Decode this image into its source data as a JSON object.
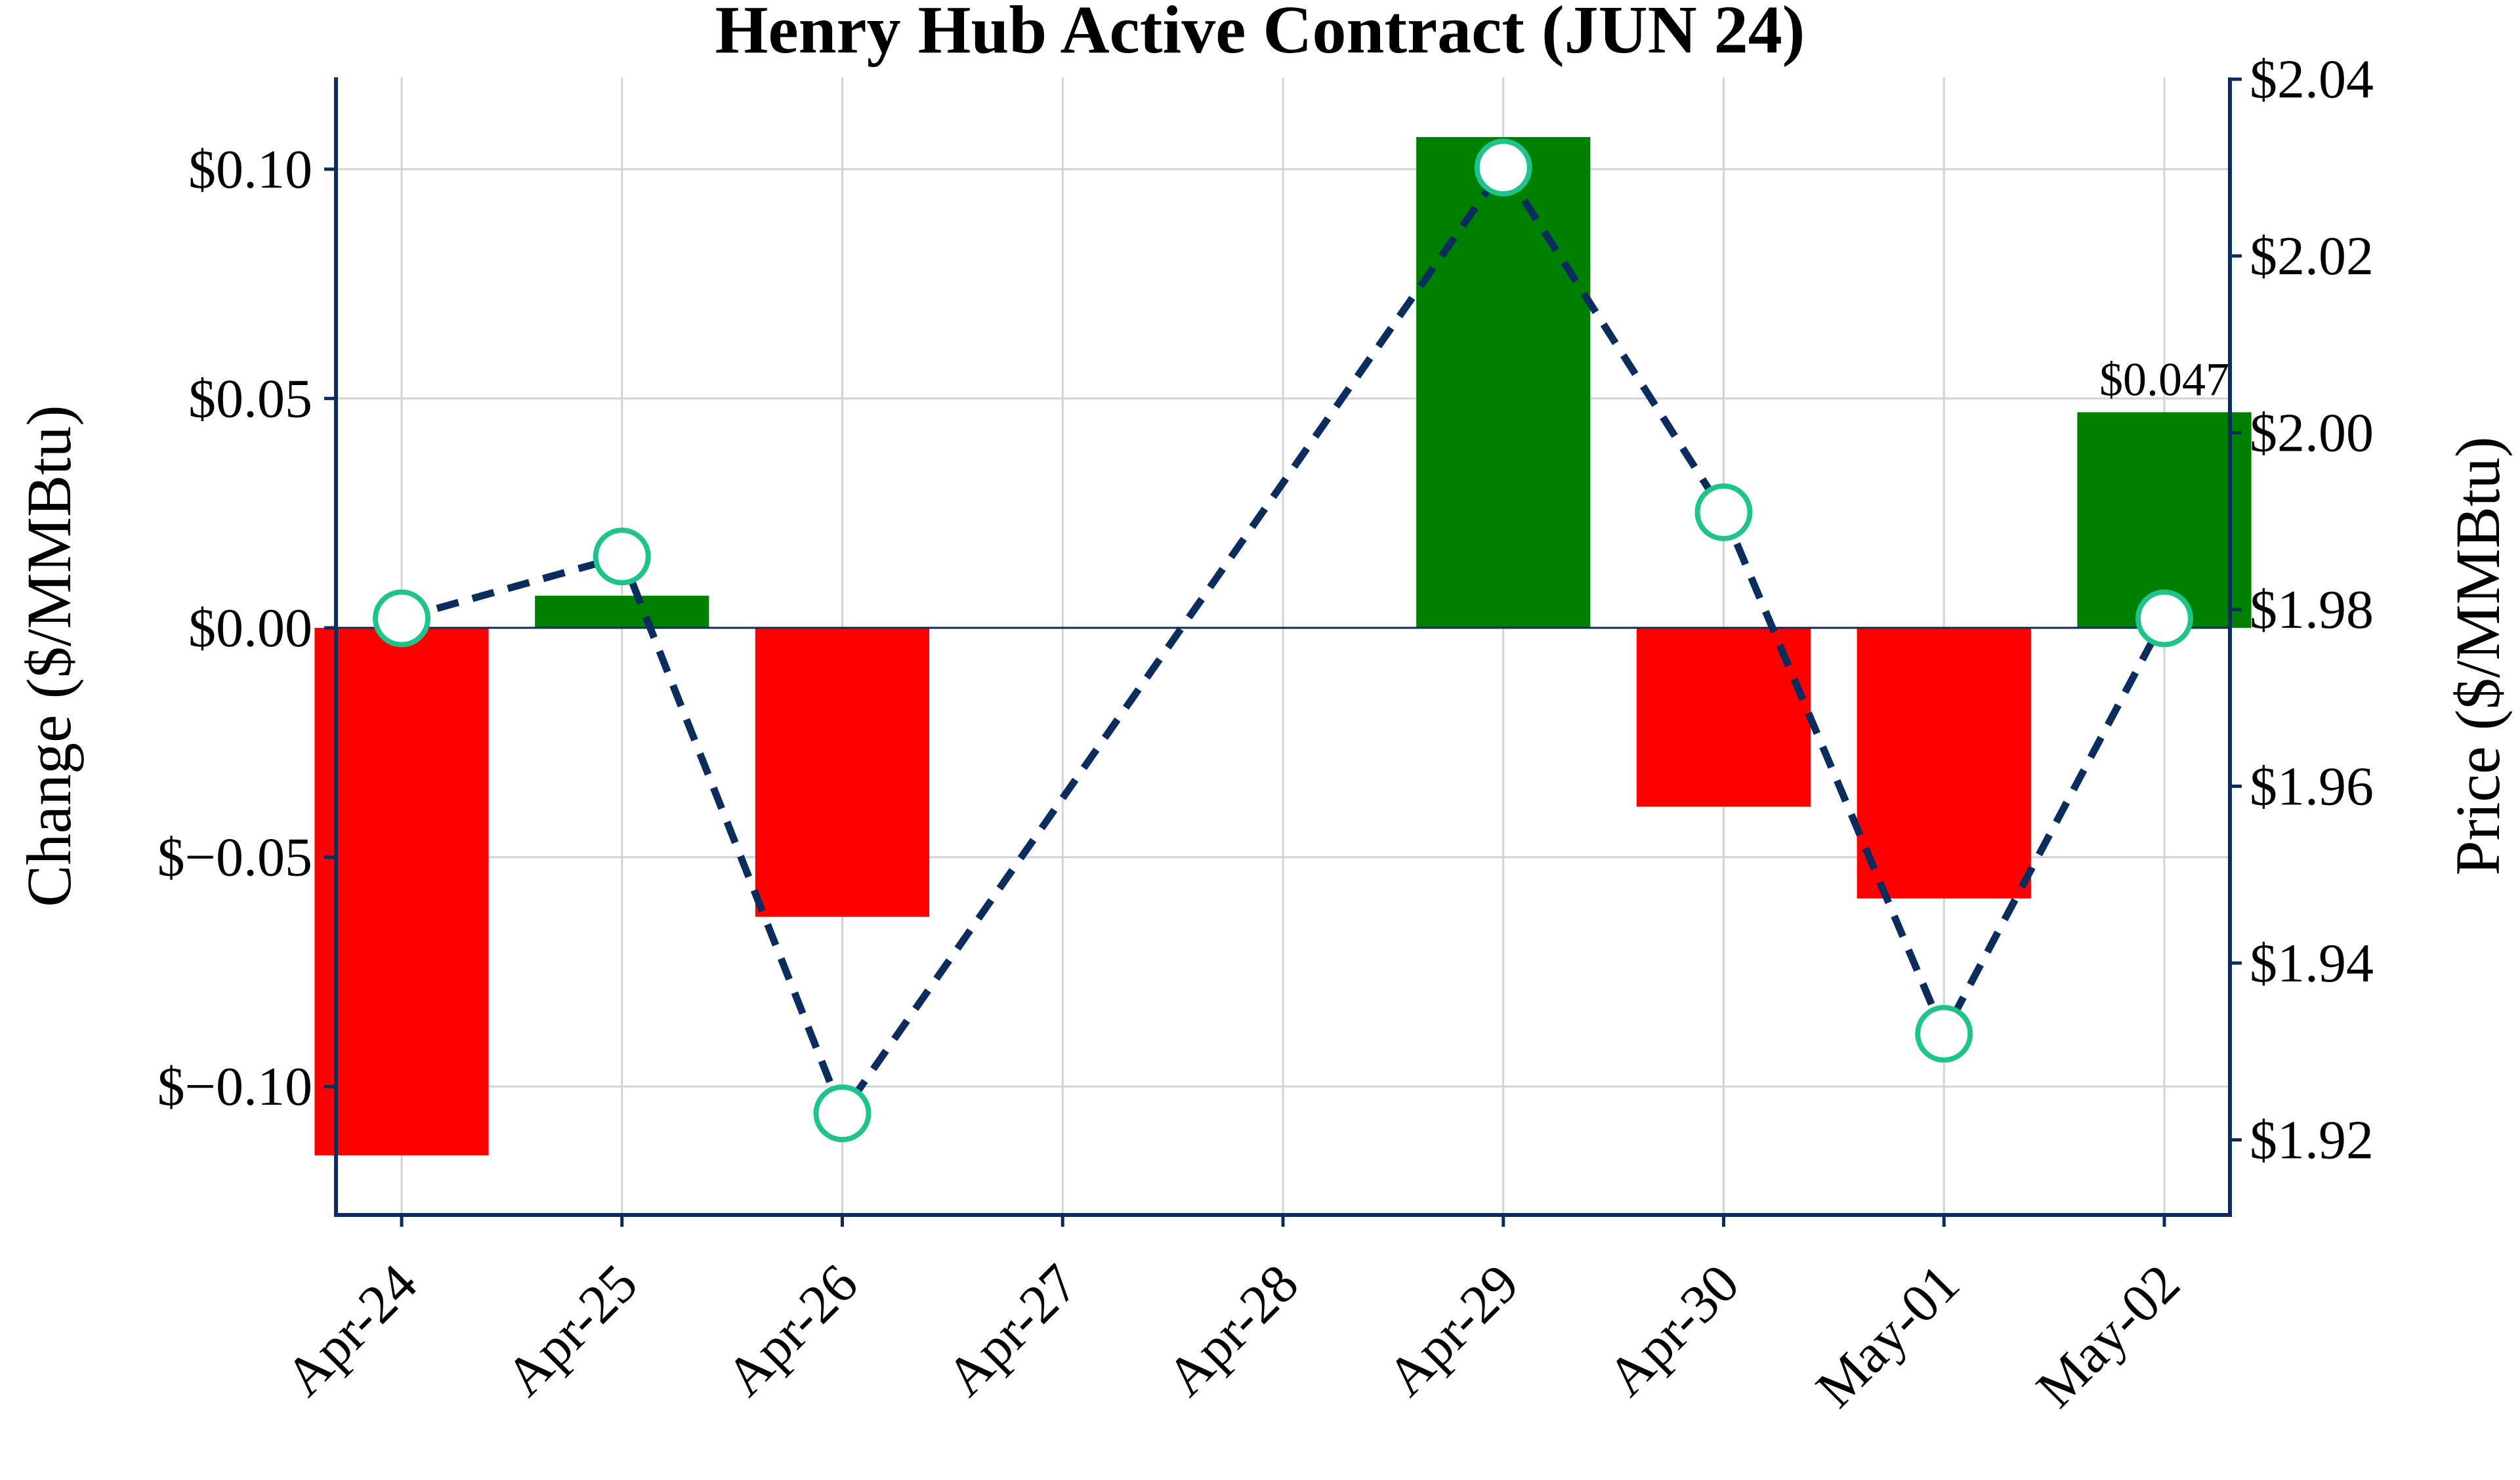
{
  "chart_data": {
    "type": "bar",
    "title": "Henry Hub Active Contract (JUN 24)",
    "xlabel": "",
    "ylabel": "Change ($/MMBtu)",
    "y2label": "Price ($/MMBtu)",
    "categories": [
      "Apr-24",
      "Apr-25",
      "Apr-26",
      "Apr-27",
      "Apr-28",
      "Apr-29",
      "Apr-30",
      "May-01",
      "May-02"
    ],
    "series": [
      {
        "axis": "left",
        "kind": "bar",
        "values": [
          -0.115,
          0.007,
          -0.063,
          null,
          null,
          0.107,
          -0.039,
          -0.059,
          0.047
        ],
        "positive_color": "#008000",
        "negative_color": "#ff0000"
      },
      {
        "axis": "right",
        "kind": "line",
        "style": "dashed",
        "line_color": "#0a2d5e",
        "marker_edge_color": "#1fc48c",
        "marker_fill_color": "#ffffff",
        "values": [
          1.979,
          1.986,
          1.923,
          null,
          null,
          2.03,
          1.991,
          1.932,
          1.979
        ]
      }
    ],
    "ylim": [
      -0.128,
      0.12
    ],
    "y_ticks": [
      -0.1,
      -0.05,
      0.0,
      0.05,
      0.1
    ],
    "y_tick_labels": [
      "$−0.10",
      "$−0.05",
      "$0.00",
      "$0.05",
      "$0.10"
    ],
    "y2lim": [
      1.9115,
      2.0402
    ],
    "y2_ticks": [
      1.92,
      1.94,
      1.96,
      1.98,
      2.0,
      2.02,
      2.04
    ],
    "y2_tick_labels": [
      "$1.92",
      "$1.94",
      "$1.96",
      "$1.98",
      "$2.00",
      "$2.02",
      "$2.04"
    ],
    "annotations": [
      {
        "category": "May-02",
        "value": 0.047,
        "text": "$0.047"
      }
    ],
    "grid": true,
    "x_tick_rotation": -45,
    "colors": {
      "axis": "#0a2d5e",
      "grid": "#d3d3d3",
      "zero_line": "#0a2d5e"
    }
  }
}
